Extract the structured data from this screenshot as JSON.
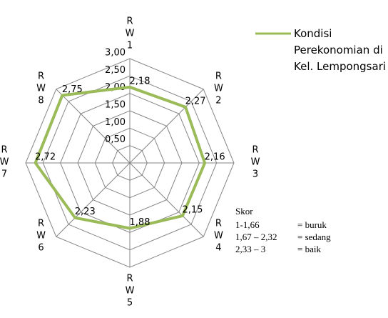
{
  "chart_data": {
    "type": "radar",
    "categories": [
      "RW1",
      "RW2",
      "RW3",
      "RW4",
      "RW5",
      "RW6",
      "RW7",
      "RW8"
    ],
    "series": [
      {
        "name": "Kondisi Perekonomian di Kel. Lempongsari",
        "color": "#9bbb59",
        "values": [
          2.18,
          2.27,
          2.16,
          2.15,
          1.88,
          2.23,
          2.72,
          2.75
        ],
        "value_labels": [
          "2,18",
          "2,27",
          "2,16",
          "2,15",
          "1,88",
          "2,23",
          "2,72",
          "2,75"
        ]
      }
    ],
    "rlim": [
      0,
      3
    ],
    "rticks": [
      {
        "value": 0.5,
        "label": "0,50"
      },
      {
        "value": 1,
        "label": "1,00"
      },
      {
        "value": 1.5,
        "label": "1,50"
      },
      {
        "value": 2,
        "label": "2,00"
      },
      {
        "value": 2.5,
        "label": "2,50"
      },
      {
        "value": 3,
        "label": "3,00"
      }
    ],
    "grid": true,
    "legend": "upper right",
    "annotation": {
      "title": "Skor",
      "rows": [
        [
          "1-1,66",
          "= buruk"
        ],
        [
          "1,67 – 2,32",
          "= sedang"
        ],
        [
          "2,33 – 3",
          "= baik"
        ]
      ]
    }
  }
}
